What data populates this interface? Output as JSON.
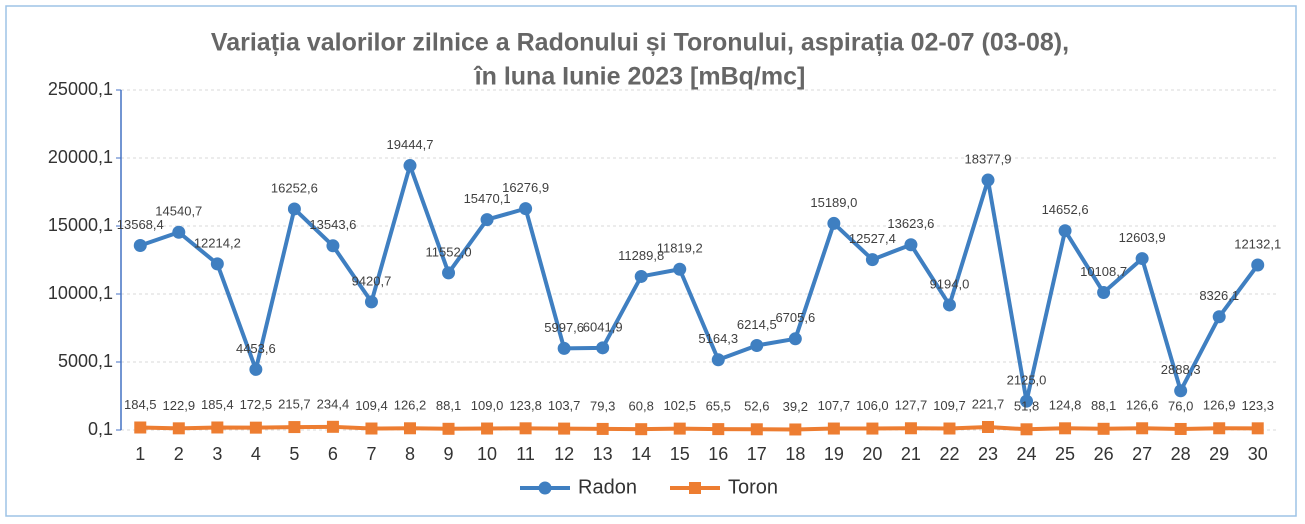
{
  "chart_data": {
    "type": "line",
    "title": [
      "Variația valorilor zilnice a Radonului și Toronului, aspirația 02-07 (03-08),",
      "în luna Iunie 2023 [mBq/mc]"
    ],
    "categories": [
      "1",
      "2",
      "3",
      "4",
      "5",
      "6",
      "7",
      "8",
      "9",
      "10",
      "11",
      "12",
      "13",
      "14",
      "15",
      "16",
      "17",
      "18",
      "19",
      "20",
      "21",
      "22",
      "23",
      "24",
      "25",
      "26",
      "27",
      "28",
      "29",
      "30"
    ],
    "ylim": [
      0.1,
      25000.1
    ],
    "yticks": [
      {
        "value": 0.1,
        "label": "0,1"
      },
      {
        "value": 5000.1,
        "label": "5000,1"
      },
      {
        "value": 10000.1,
        "label": "10000,1"
      },
      {
        "value": 15000.1,
        "label": "15000,1"
      },
      {
        "value": 20000.1,
        "label": "20000,1"
      },
      {
        "value": 25000.1,
        "label": "25000,1"
      }
    ],
    "grid": true,
    "legend": "bottom",
    "series": [
      {
        "name": "Radon",
        "color": "#3f7fc1",
        "marker": "circle",
        "values": [
          13568.4,
          14540.7,
          12214.2,
          4453.6,
          16252.6,
          13543.6,
          9420.7,
          19444.7,
          11552.0,
          15470.1,
          16276.9,
          5997.6,
          6041.9,
          11289.8,
          11819.2,
          5164.3,
          6214.5,
          6705.6,
          15189.0,
          12527.4,
          13623.6,
          9194.0,
          18377.9,
          2125.0,
          14652.6,
          10108.7,
          12603.9,
          2888.3,
          8326.1,
          12132.1
        ],
        "value_labels": [
          "13568,4",
          "14540,7",
          "12214,2",
          "4453,6",
          "16252,6",
          "13543,6",
          "9420,7",
          "19444,7",
          "11552,0",
          "15470,1",
          "16276,9",
          "5997,6",
          "6041,9",
          "11289,8",
          "11819,2",
          "5164,3",
          "6214,5",
          "6705,6",
          "15189,0",
          "12527,4",
          "13623,6",
          "9194,0",
          "18377,9",
          "2125,0",
          "14652,6",
          "10108,7",
          "12603,9",
          "2888,3",
          "8326,1",
          "12132,1"
        ]
      },
      {
        "name": "Toron",
        "color": "#ed7d31",
        "marker": "square",
        "values": [
          184.5,
          122.9,
          185.4,
          172.5,
          215.7,
          234.4,
          109.4,
          126.2,
          88.1,
          109.0,
          123.8,
          103.7,
          79.3,
          60.8,
          102.5,
          65.5,
          52.6,
          39.2,
          107.7,
          106.0,
          127.7,
          109.7,
          221.7,
          51.8,
          124.8,
          88.1,
          126.6,
          76.0,
          126.9,
          123.3
        ],
        "value_labels": [
          "184,5",
          "122,9",
          "185,4",
          "172,5",
          "215,7",
          "234,4",
          "109,4",
          "126,2",
          "88,1",
          "109,0",
          "123,8",
          "103,7",
          "79,3",
          "60,8",
          "102,5",
          "65,5",
          "52,6",
          "39,2",
          "107,7",
          "106,0",
          "127,7",
          "109,7",
          "221,7",
          "51,8",
          "124,8",
          "88,1",
          "126,6",
          "76,0",
          "126,9",
          "123,3"
        ]
      }
    ]
  }
}
